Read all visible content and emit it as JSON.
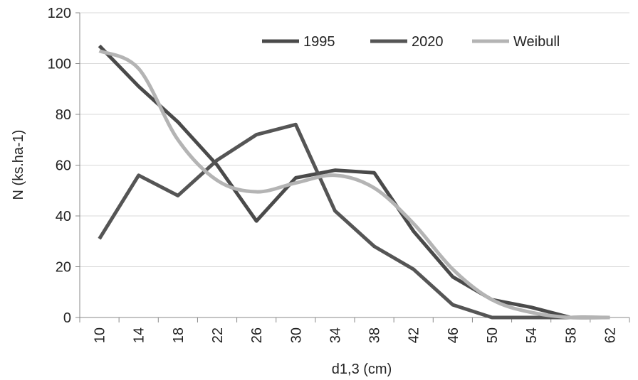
{
  "chart_data": {
    "type": "line",
    "xlabel": "d1,3 (cm)",
    "ylabel": "N (ks.ha-1)",
    "x": [
      10,
      14,
      18,
      22,
      26,
      30,
      34,
      38,
      42,
      46,
      50,
      54,
      58,
      62
    ],
    "x_tick_labels": [
      "10",
      "14",
      "18",
      "22",
      "26",
      "30",
      "34",
      "38",
      "42",
      "46",
      "50",
      "54",
      "58",
      "62"
    ],
    "ylim": [
      0,
      120
    ],
    "y_ticks": [
      0,
      20,
      40,
      60,
      80,
      100,
      120
    ],
    "grid": true,
    "legend_position": "top-right",
    "series": [
      {
        "name": "1995",
        "values": [
          107,
          91,
          77,
          60,
          38,
          55,
          58,
          57,
          34,
          16,
          7,
          4,
          0,
          0
        ],
        "color": "#4a4a4a",
        "smooth": false
      },
      {
        "name": "2020",
        "values": [
          31,
          56,
          48,
          62,
          72,
          76,
          42,
          28,
          19,
          5,
          0,
          0,
          0,
          0
        ],
        "color": "#555555",
        "smooth": false
      },
      {
        "name": "Weibull",
        "values": [
          105,
          98,
          70,
          54,
          49.5,
          53,
          56,
          51,
          37,
          19,
          7,
          2,
          0,
          0
        ],
        "color": "#b4b4b4",
        "smooth": true
      }
    ]
  }
}
